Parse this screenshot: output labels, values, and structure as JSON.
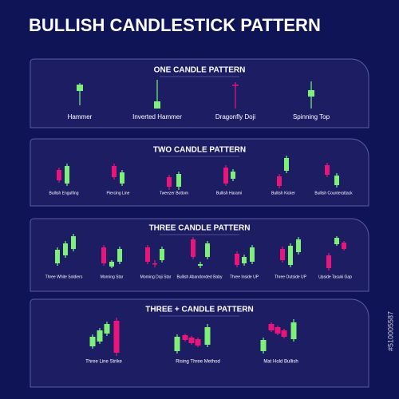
{
  "title": "BULLISH CANDLESTICK PATTERN",
  "watermark_id": "#510005587",
  "sections": [
    {
      "heading": "ONE CANDLE PATTERN",
      "patterns": [
        "Hammer",
        "Inverted Hammer",
        "Dragonfly Doji",
        "Spinning Top"
      ]
    },
    {
      "heading": "TWO CANDLE PATTERN",
      "patterns": [
        "Bullish Engulfing",
        "Piercing Line",
        "Tweezer Bottom",
        "Bullish Harami",
        "Bullish Kicker",
        "Bullish Counterattack"
      ]
    },
    {
      "heading": "THREE  CANDLE PATTERN",
      "patterns": [
        "Three White Soldiers",
        "Morning Star",
        "Morning Doji Star",
        "Bullish Abandonded Baby",
        "Three Inside UP",
        "Three Outside UP",
        "Upside Tasuki Gap"
      ]
    },
    {
      "heading": "THREE + CANDLE PATTERN",
      "patterns": [
        "Three Line Strike",
        "Rising Three Method",
        "Mat Hold Bullish"
      ]
    }
  ]
}
